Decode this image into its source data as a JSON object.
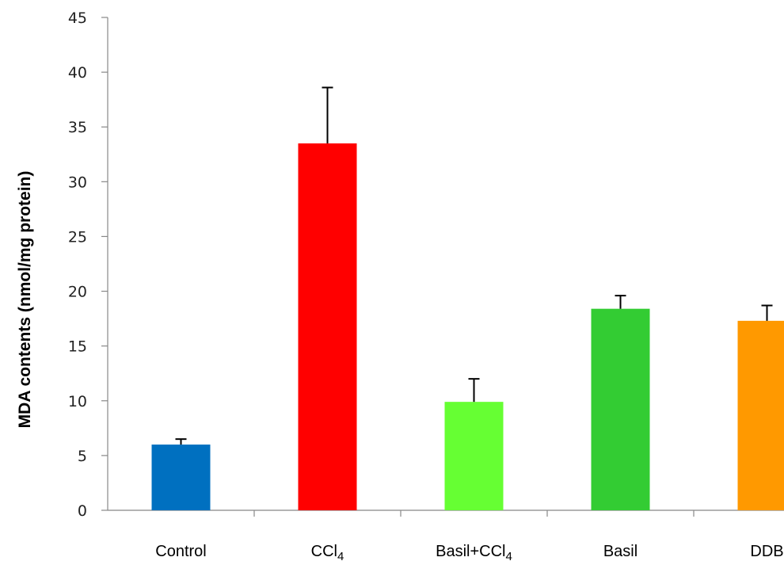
{
  "chart_data": {
    "type": "bar",
    "title": "",
    "xlabel": "",
    "ylabel": "MDA contents (nmol/mg protein)",
    "ylim": [
      0,
      45
    ],
    "yticks": [
      0,
      5,
      10,
      15,
      20,
      25,
      30,
      35,
      40,
      45
    ],
    "categories": [
      {
        "main": "Control",
        "sub": ""
      },
      {
        "main": "CCl",
        "sub": "4"
      },
      {
        "main": "Basil+CCl",
        "sub": "4"
      },
      {
        "main": "Basil",
        "sub": ""
      },
      {
        "main": "DDB",
        "sub": ""
      }
    ],
    "values": [
      6.0,
      33.5,
      9.9,
      18.4,
      17.3
    ],
    "errors": [
      0.5,
      5.1,
      2.1,
      1.2,
      1.4
    ],
    "colors": [
      "#0070c0",
      "#ff0000",
      "#66ff33",
      "#33cc33",
      "#ff9900"
    ],
    "grid": false
  }
}
